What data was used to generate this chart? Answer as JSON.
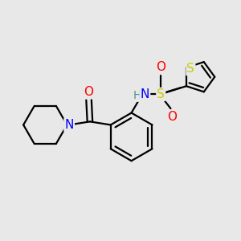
{
  "background_color": "#e8e8e8",
  "atom_colors": {
    "O": "#ff0000",
    "N": "#0000ff",
    "S": "#cccc00",
    "H": "#4a9090",
    "C": "#000000"
  },
  "bond_color": "#000000",
  "figsize": [
    3.0,
    3.0
  ],
  "dpi": 100,
  "lw": 1.6
}
